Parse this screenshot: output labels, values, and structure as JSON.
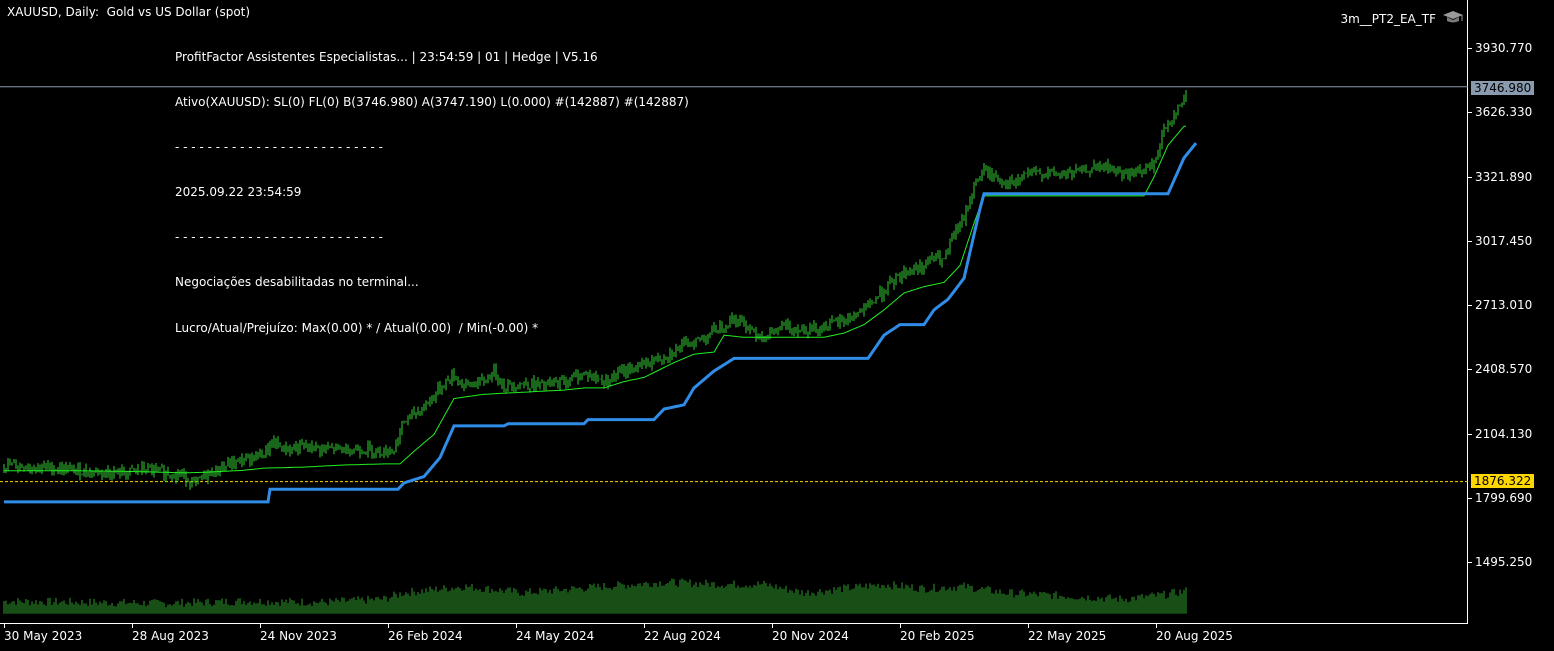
{
  "header": {
    "title": "XAUUSD, Daily:  Gold vs US Dollar (spot)",
    "ea_name": "3m__PT2_EA_TF"
  },
  "overlay": {
    "lines": [
      "ProfitFactor Assistentes Especialistas... | 23:54:59 | 01 | Hedge | V5.16",
      "Ativo(XAUUSD): SL(0) FL(0) B(3746.980) A(3747.190) L(0.000) #(142887) #(142887)",
      "- - - - - - - - - - - - - - - - - - - - - - - - - -",
      "2025.09.22 23:54:59",
      "- - - - - - - - - - - - - - - - - - - - - - - - - -",
      "Negociações desabilitadas no terminal...",
      "Lucro/Atual/Prejuízo: Max(0.00) * / Atual(0.00)  / Min(-0.00) *"
    ]
  },
  "price_labels": {
    "bid": "3746.980",
    "level": "1876.322"
  },
  "colors": {
    "price": "#33cc33",
    "ma": "#22ee22",
    "trail": "#2f8de8",
    "volume": "#2e9e2e",
    "bid_line": "#8a9bb0",
    "level_line": "#ffd700"
  },
  "chart_data": {
    "type": "line",
    "symbol": "XAUUSD",
    "timeframe": "Daily",
    "ylim": [
      1250,
      4040
    ],
    "y_ticks": [
      "3930.770",
      "3626.330",
      "3321.890",
      "3017.450",
      "2713.010",
      "2408.570",
      "2104.130",
      "1799.690",
      "1495.250"
    ],
    "y_tick_values": [
      3930.77,
      3626.33,
      3321.89,
      3017.45,
      2713.01,
      2408.57,
      2104.13,
      1799.69,
      1495.25
    ],
    "x_ticks": [
      "30 May 2023",
      "28 Aug 2023",
      "24 Nov 2023",
      "26 Feb 2024",
      "24 May 2024",
      "22 Aug 2024",
      "20 Nov 2024",
      "20 Feb 2025",
      "22 May 2025",
      "20 Aug 2025"
    ],
    "x_tick_index": [
      0,
      64,
      128,
      192,
      256,
      320,
      384,
      448,
      512,
      576
    ],
    "bar_count": 592,
    "bid": 3746.98,
    "level": 1876.322,
    "series": [
      {
        "kind": "price",
        "points": [
          [
            0,
            1955
          ],
          [
            20,
            1945
          ],
          [
            40,
            1925
          ],
          [
            60,
            1915
          ],
          [
            70,
            1935
          ],
          [
            80,
            1920
          ],
          [
            90,
            1905
          ],
          [
            95,
            1860
          ],
          [
            100,
            1900
          ],
          [
            110,
            1950
          ],
          [
            120,
            1980
          ],
          [
            130,
            2010
          ],
          [
            135,
            2060
          ],
          [
            140,
            2030
          ],
          [
            150,
            2040
          ],
          [
            160,
            2030
          ],
          [
            170,
            2030
          ],
          [
            180,
            2030
          ],
          [
            190,
            2020
          ],
          [
            195,
            2030
          ],
          [
            200,
            2160
          ],
          [
            210,
            2230
          ],
          [
            220,
            2340
          ],
          [
            225,
            2380
          ],
          [
            230,
            2330
          ],
          [
            240,
            2350
          ],
          [
            245,
            2400
          ],
          [
            250,
            2330
          ],
          [
            260,
            2340
          ],
          [
            270,
            2330
          ],
          [
            280,
            2350
          ],
          [
            290,
            2390
          ],
          [
            300,
            2350
          ],
          [
            310,
            2400
          ],
          [
            320,
            2430
          ],
          [
            330,
            2470
          ],
          [
            340,
            2520
          ],
          [
            350,
            2560
          ],
          [
            360,
            2620
          ],
          [
            365,
            2650
          ],
          [
            370,
            2620
          ],
          [
            380,
            2560
          ],
          [
            390,
            2610
          ],
          [
            400,
            2600
          ],
          [
            410,
            2610
          ],
          [
            420,
            2640
          ],
          [
            430,
            2690
          ],
          [
            440,
            2780
          ],
          [
            450,
            2870
          ],
          [
            460,
            2900
          ],
          [
            465,
            2940
          ],
          [
            470,
            2920
          ],
          [
            475,
            3050
          ],
          [
            480,
            3120
          ],
          [
            485,
            3280
          ],
          [
            490,
            3350
          ],
          [
            495,
            3320
          ],
          [
            500,
            3300
          ],
          [
            505,
            3280
          ],
          [
            510,
            3330
          ],
          [
            520,
            3340
          ],
          [
            530,
            3330
          ],
          [
            540,
            3350
          ],
          [
            550,
            3370
          ],
          [
            560,
            3330
          ],
          [
            570,
            3350
          ],
          [
            575,
            3380
          ],
          [
            580,
            3540
          ],
          [
            585,
            3620
          ],
          [
            590,
            3680
          ],
          [
            592,
            3747
          ]
        ]
      },
      {
        "kind": "ma",
        "points": [
          [
            0,
            1928
          ],
          [
            30,
            1928
          ],
          [
            60,
            1925
          ],
          [
            90,
            1918
          ],
          [
            100,
            1920
          ],
          [
            110,
            1925
          ],
          [
            120,
            1930
          ],
          [
            130,
            1940
          ],
          [
            150,
            1945
          ],
          [
            170,
            1955
          ],
          [
            190,
            1960
          ],
          [
            198,
            1960
          ],
          [
            205,
            2020
          ],
          [
            215,
            2100
          ],
          [
            225,
            2270
          ],
          [
            240,
            2290
          ],
          [
            260,
            2300
          ],
          [
            280,
            2310
          ],
          [
            290,
            2320
          ],
          [
            300,
            2320
          ],
          [
            310,
            2350
          ],
          [
            320,
            2370
          ],
          [
            335,
            2440
          ],
          [
            345,
            2480
          ],
          [
            355,
            2490
          ],
          [
            360,
            2570
          ],
          [
            370,
            2560
          ],
          [
            390,
            2560
          ],
          [
            410,
            2560
          ],
          [
            420,
            2580
          ],
          [
            430,
            2620
          ],
          [
            440,
            2690
          ],
          [
            450,
            2770
          ],
          [
            460,
            2800
          ],
          [
            470,
            2820
          ],
          [
            478,
            2900
          ],
          [
            485,
            3100
          ],
          [
            490,
            3230
          ],
          [
            500,
            3230
          ],
          [
            540,
            3230
          ],
          [
            570,
            3230
          ],
          [
            575,
            3320
          ],
          [
            582,
            3470
          ],
          [
            590,
            3560
          ],
          [
            592,
            3560
          ]
        ]
      },
      {
        "kind": "trail",
        "points": [
          [
            0,
            1780
          ],
          [
            132,
            1780
          ],
          [
            133,
            1840
          ],
          [
            197,
            1840
          ],
          [
            200,
            1870
          ],
          [
            210,
            1900
          ],
          [
            218,
            1990
          ],
          [
            225,
            2140
          ],
          [
            250,
            2140
          ],
          [
            252,
            2150
          ],
          [
            290,
            2150
          ],
          [
            292,
            2170
          ],
          [
            325,
            2170
          ],
          [
            330,
            2220
          ],
          [
            340,
            2240
          ],
          [
            345,
            2320
          ],
          [
            355,
            2400
          ],
          [
            365,
            2460
          ],
          [
            432,
            2460
          ],
          [
            440,
            2570
          ],
          [
            448,
            2620
          ],
          [
            460,
            2620
          ],
          [
            465,
            2690
          ],
          [
            472,
            2740
          ],
          [
            480,
            2840
          ],
          [
            488,
            3170
          ],
          [
            490,
            3240
          ],
          [
            582,
            3240
          ],
          [
            590,
            3410
          ],
          [
            596,
            3480
          ]
        ]
      },
      {
        "kind": "volume",
        "base": 1250,
        "points": [
          [
            0,
            1310
          ],
          [
            40,
            1305
          ],
          [
            80,
            1300
          ],
          [
            120,
            1310
          ],
          [
            160,
            1305
          ],
          [
            190,
            1320
          ],
          [
            200,
            1350
          ],
          [
            230,
            1380
          ],
          [
            260,
            1350
          ],
          [
            300,
            1380
          ],
          [
            330,
            1400
          ],
          [
            360,
            1390
          ],
          [
            380,
            1390
          ],
          [
            400,
            1350
          ],
          [
            420,
            1370
          ],
          [
            440,
            1390
          ],
          [
            460,
            1370
          ],
          [
            480,
            1380
          ],
          [
            500,
            1350
          ],
          [
            540,
            1330
          ],
          [
            560,
            1320
          ],
          [
            580,
            1340
          ],
          [
            592,
            1360
          ]
        ]
      }
    ]
  }
}
